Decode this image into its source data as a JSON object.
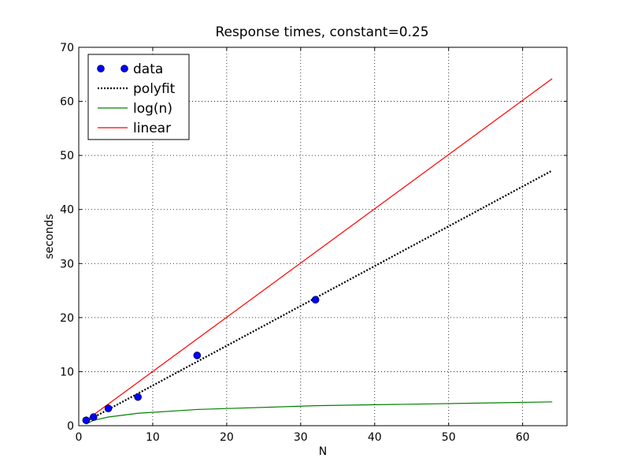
{
  "chart_data": {
    "type": "line",
    "title": "Response times, constant=0.25",
    "xlabel": "N",
    "ylabel": "seconds",
    "xlim": [
      0,
      66
    ],
    "ylim": [
      0,
      70
    ],
    "xticks": [
      0,
      10,
      20,
      30,
      40,
      50,
      60
    ],
    "yticks": [
      0,
      10,
      20,
      30,
      40,
      50,
      60,
      70
    ],
    "grid": true,
    "legend_position": "top-left",
    "series": [
      {
        "name": "data",
        "style": "markers",
        "color": "#0000ff",
        "x": [
          1,
          2,
          4,
          8,
          16,
          32
        ],
        "y": [
          1.0,
          1.6,
          3.2,
          5.3,
          13.0,
          23.3
        ]
      },
      {
        "name": "polyfit",
        "style": "dotted",
        "color": "#000000",
        "x": [
          1,
          64
        ],
        "y": [
          0.8,
          47.2
        ]
      },
      {
        "name": "log(n)",
        "style": "solid",
        "color": "#008000",
        "x": [
          1,
          2,
          4,
          8,
          16,
          32,
          64
        ],
        "y": [
          0.3,
          1.0,
          1.6,
          2.3,
          3.0,
          3.7,
          4.4
        ]
      },
      {
        "name": "linear",
        "style": "solid",
        "color": "#ff0000",
        "x": [
          1,
          64
        ],
        "y": [
          1.0,
          64.2
        ]
      }
    ]
  }
}
